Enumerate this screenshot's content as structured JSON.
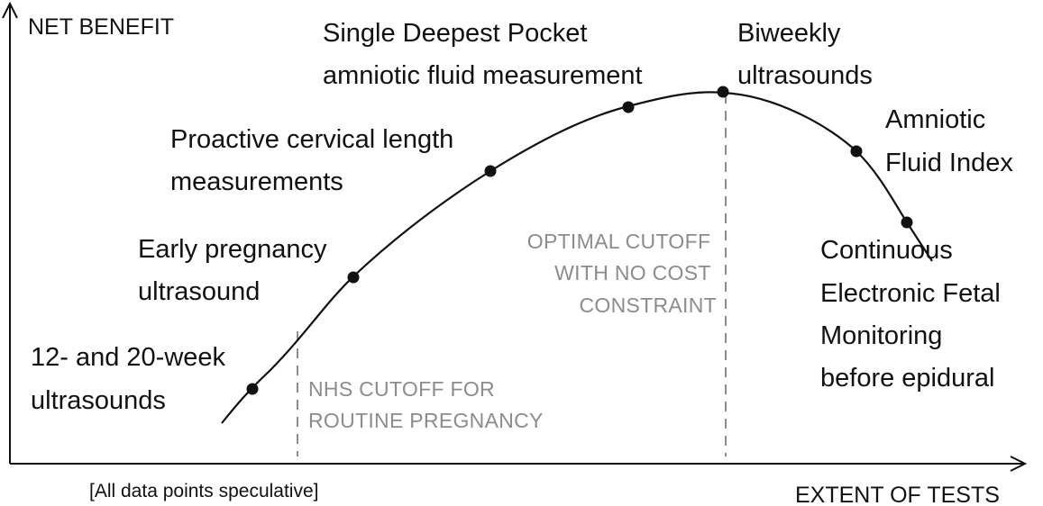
{
  "axes": {
    "y_label": "NET BENEFIT",
    "x_label": "EXTENT OF TESTS"
  },
  "note": "[All data points speculative]",
  "cutoffs": {
    "nhs": {
      "lines": [
        "NHS CUTOFF FOR",
        "ROUTINE PREGNANCY"
      ]
    },
    "optimal": {
      "lines": [
        "OPTIMAL CUTOFF",
        "WITH NO COST",
        "CONSTRAINT"
      ]
    }
  },
  "points": [
    {
      "id": "ultrasounds-12-20",
      "lines": [
        "12- and 20-week",
        "ultrasounds"
      ]
    },
    {
      "id": "early-pregnancy-ultrasound",
      "lines": [
        "Early pregnancy",
        "ultrasound"
      ]
    },
    {
      "id": "cervical-length",
      "lines": [
        "Proactive cervical length",
        "measurements"
      ]
    },
    {
      "id": "single-deepest-pocket",
      "lines": [
        "Single Deepest Pocket",
        "amniotic fluid measurement"
      ]
    },
    {
      "id": "biweekly-ultrasounds",
      "lines": [
        "Biweekly",
        "ultrasounds"
      ]
    },
    {
      "id": "amniotic-fluid-index",
      "lines": [
        "Amniotic",
        "Fluid Index"
      ]
    },
    {
      "id": "continuous-efm",
      "lines": [
        "Continuous",
        "Electronic Fetal",
        "Monitoring",
        "before epidural"
      ]
    }
  ],
  "colors": {
    "ink": "#111111",
    "cutoff": "#8c8c8c"
  }
}
